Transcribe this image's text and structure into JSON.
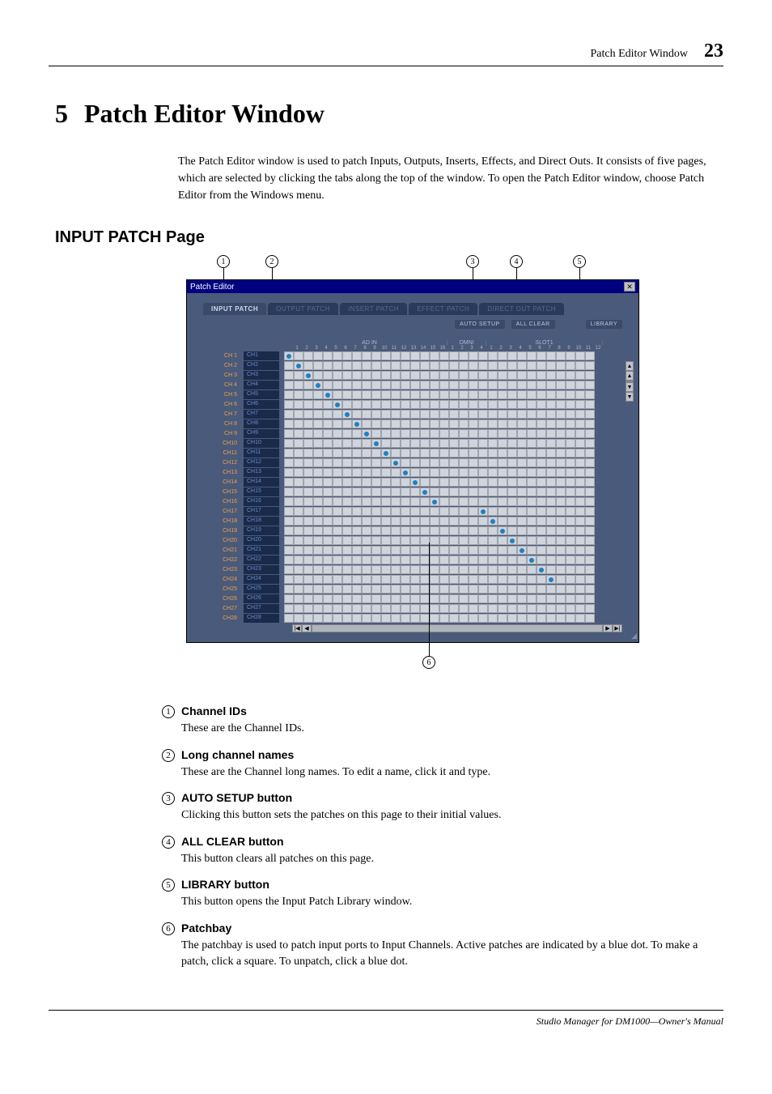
{
  "header": {
    "title": "Patch Editor Window",
    "page": "23"
  },
  "chapter": {
    "num": "5",
    "title": "Patch Editor Window"
  },
  "intro": "The Patch Editor window is used to patch Inputs, Outputs, Inserts, Effects, and Direct Outs. It consists of five pages, which are selected by clicking the tabs along the top of the window. To open the Patch Editor window, choose Patch Editor from the Windows menu.",
  "section": "INPUT PATCH Page",
  "screenshot": {
    "window_title": "Patch Editor",
    "tabs": [
      "INPUT PATCH",
      "OUTPUT PATCH",
      "INSERT PATCH",
      "EFFECT PATCH",
      "DIRECT OUT PATCH"
    ],
    "active_tab": 0,
    "toolbar": {
      "auto_setup": "AUTO SETUP",
      "all_clear": "ALL CLEAR",
      "library": "LIBRARY"
    },
    "column_groups": [
      {
        "label": "AD IN",
        "cols": 16
      },
      {
        "label": "OMNI",
        "cols": 4
      },
      {
        "label": "SLOT1",
        "cols": 12
      }
    ],
    "col_numbers": [
      "1",
      "2",
      "3",
      "4",
      "5",
      "6",
      "7",
      "8",
      "9",
      "10",
      "11",
      "12",
      "13",
      "14",
      "15",
      "16",
      "1",
      "2",
      "3",
      "4",
      "1",
      "2",
      "3",
      "4",
      "5",
      "6",
      "7",
      "8",
      "9",
      "10",
      "11",
      "12"
    ],
    "rows": [
      {
        "id": "CH 1",
        "name": "CH1",
        "patch": 0
      },
      {
        "id": "CH 2",
        "name": "CH2",
        "patch": 1
      },
      {
        "id": "CH 3",
        "name": "CH3",
        "patch": 2
      },
      {
        "id": "CH 4",
        "name": "CH4",
        "patch": 3
      },
      {
        "id": "CH 5",
        "name": "CH5",
        "patch": 4
      },
      {
        "id": "CH 6",
        "name": "CH6",
        "patch": 5
      },
      {
        "id": "CH 7",
        "name": "CH7",
        "patch": 6
      },
      {
        "id": "CH 8",
        "name": "CH8",
        "patch": 7
      },
      {
        "id": "CH 9",
        "name": "CH9",
        "patch": 8
      },
      {
        "id": "CH10",
        "name": "CH10",
        "patch": 9
      },
      {
        "id": "CH11",
        "name": "CH11",
        "patch": 10
      },
      {
        "id": "CH12",
        "name": "CH12",
        "patch": 11
      },
      {
        "id": "CH13",
        "name": "CH13",
        "patch": 12
      },
      {
        "id": "CH14",
        "name": "CH14",
        "patch": 13
      },
      {
        "id": "CH15",
        "name": "CH15",
        "patch": 14
      },
      {
        "id": "CH16",
        "name": "CH16",
        "patch": 15
      },
      {
        "id": "CH17",
        "name": "CH17",
        "patch": 20
      },
      {
        "id": "CH18",
        "name": "CH18",
        "patch": 21
      },
      {
        "id": "CH19",
        "name": "CH19",
        "patch": 22
      },
      {
        "id": "CH20",
        "name": "CH20",
        "patch": 23
      },
      {
        "id": "CH21",
        "name": "CH21",
        "patch": 24
      },
      {
        "id": "CH22",
        "name": "CH22",
        "patch": 25
      },
      {
        "id": "CH23",
        "name": "CH23",
        "patch": 26
      },
      {
        "id": "CH24",
        "name": "CH24",
        "patch": 27
      },
      {
        "id": "CH25",
        "name": "CH25",
        "patch": -1
      },
      {
        "id": "CH26",
        "name": "CH26",
        "patch": -1
      },
      {
        "id": "CH27",
        "name": "CH27",
        "patch": -1
      },
      {
        "id": "CH28",
        "name": "CH28",
        "patch": -1
      }
    ],
    "colors": {
      "window_bg": "#4a5a7a",
      "titlebar_bg": "#000080",
      "ch_id_color": "#e8a050",
      "ch_name_color": "#6a8acc",
      "ch_name_bg": "#1a2a4a",
      "cell_bg": "#d0d4dc",
      "patch_dot": "#2080c0"
    }
  },
  "callouts": {
    "c1": "1",
    "c2": "2",
    "c3": "3",
    "c4": "4",
    "c5": "5",
    "c6": "6"
  },
  "definitions": [
    {
      "num": "1",
      "title": "Channel IDs",
      "text": "These are the Channel IDs."
    },
    {
      "num": "2",
      "title": "Long channel names",
      "text": "These are the Channel long names. To edit a name, click it and type."
    },
    {
      "num": "3",
      "title": "AUTO SETUP button",
      "text": "Clicking this button sets the patches on this page to their initial values."
    },
    {
      "num": "4",
      "title": "ALL CLEAR button",
      "text": "This button clears all patches on this page."
    },
    {
      "num": "5",
      "title": "LIBRARY button",
      "text": "This button opens the Input Patch Library window."
    },
    {
      "num": "6",
      "title": "Patchbay",
      "text": "The patchbay is used to patch input ports to Input Channels. Active patches are indicated by a blue dot. To make a patch, click a square. To unpatch, click a blue dot."
    }
  ],
  "footer": "Studio Manager for DM1000—Owner's Manual"
}
